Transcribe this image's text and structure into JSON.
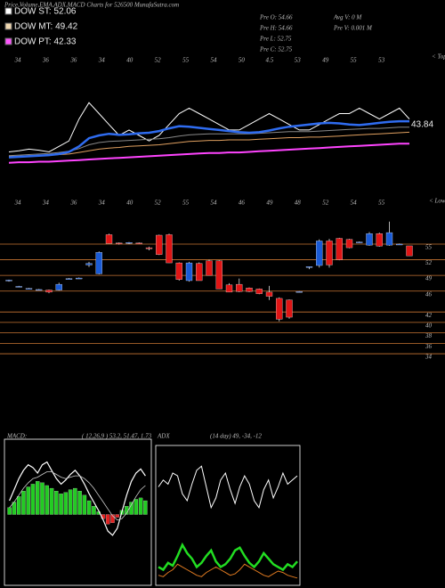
{
  "header": {
    "title": "Price,Volume,EMA,ADX,MACD Charts for 526500 MunafaSutra.com",
    "legend": [
      {
        "label": "DOW ST: 52.06",
        "color": "#ffffff"
      },
      {
        "label": "DOW MT: 49.42",
        "color": "#f0d8b0"
      },
      {
        "label": "DOW PT: 42.33",
        "color": "#ff55ff"
      }
    ],
    "info": [
      "Pre O: 54.66",
      "Pre H: 54.66",
      "Pre L: 52.75",
      "Pre C: 52.75",
      "Avg V: 0 M",
      "Pre V: 0.001 M"
    ]
  },
  "chart_data": [
    {
      "type": "line",
      "corner_label": "< Tops",
      "last_label": "43.84",
      "date_labels": [
        "34",
        "36",
        "36",
        "34",
        "40",
        "52",
        "55",
        "54",
        "50",
        "4.5",
        "53",
        "49",
        "55",
        "53"
      ],
      "ylim": [
        40,
        62
      ],
      "series": [
        {
          "color": "#ffffff",
          "width": 1,
          "values": [
            44,
            44.2,
            44.5,
            44.3,
            44,
            45,
            46,
            50,
            53,
            51,
            49,
            47,
            48,
            47,
            46,
            47,
            49,
            51,
            52,
            51,
            50,
            49,
            48,
            48,
            49,
            50,
            51,
            50,
            49,
            48,
            48,
            49,
            50,
            51,
            51,
            52,
            51,
            50,
            51,
            52,
            50
          ]
        },
        {
          "color": "#888888",
          "width": 1,
          "values": [
            43.3,
            43.4,
            43.5,
            43.6,
            43.7,
            43.9,
            44.1,
            44.6,
            45.3,
            45.7,
            45.9,
            46,
            46.1,
            46.2,
            46.3,
            46.4,
            46.6,
            46.9,
            47.1,
            47.2,
            47.3,
            47.3,
            47.3,
            47.3,
            47.3,
            47.4,
            47.5,
            47.6,
            47.7,
            47.7,
            47.7,
            47.8,
            47.9,
            48,
            48.1,
            48.2,
            48.3,
            48.3,
            48.4,
            48.5,
            48.5
          ]
        },
        {
          "color": "#e0a060",
          "width": 1,
          "values": [
            43.2,
            43.2,
            43.3,
            43.3,
            43.4,
            43.5,
            43.6,
            43.9,
            44.2,
            44.5,
            44.7,
            44.8,
            45,
            45.1,
            45.2,
            45.3,
            45.5,
            45.7,
            45.9,
            46,
            46.1,
            46.1,
            46.2,
            46.2,
            46.2,
            46.3,
            46.4,
            46.5,
            46.6,
            46.6,
            46.7,
            46.7,
            46.8,
            46.9,
            47,
            47.1,
            47.2,
            47.3,
            47.4,
            47.5,
            47.6
          ]
        },
        {
          "color": "#2f6cf0",
          "width": 2.5,
          "values": [
            43,
            43.1,
            43.2,
            43.3,
            43.4,
            43.6,
            44,
            45,
            46.5,
            47,
            47.3,
            47.1,
            47.2,
            47.4,
            47.5,
            47.8,
            48.3,
            48.7,
            48.6,
            48.4,
            48.2,
            48,
            47.8,
            47.6,
            47.5,
            47.6,
            47.9,
            48.3,
            48.6,
            48.8,
            49,
            49.2,
            49.3,
            49.2,
            49,
            48.9,
            49.1,
            49.3,
            49.5,
            49.6,
            49.6
          ]
        },
        {
          "color": "#ff44ff",
          "width": 2,
          "values": [
            42,
            42.1,
            42.1,
            42.2,
            42.2,
            42.3,
            42.4,
            42.5,
            42.6,
            42.7,
            42.8,
            42.9,
            43,
            43.1,
            43.2,
            43.3,
            43.4,
            43.5,
            43.6,
            43.7,
            43.8,
            43.8,
            43.9,
            43.9,
            44,
            44.1,
            44.2,
            44.3,
            44.4,
            44.5,
            44.6,
            44.7,
            44.8,
            44.9,
            45,
            45.1,
            45.2,
            45.3,
            45.4,
            45.5,
            45.5
          ]
        }
      ]
    },
    {
      "type": "candlestick",
      "corner_label": "< Lows",
      "up_color": "#1a5bd6",
      "down_color": "#e01515",
      "grid_color": "#c87533",
      "date_labels": [
        "34",
        "34",
        "36",
        "34",
        "40",
        "52",
        "55",
        "54",
        "46",
        "49",
        "48",
        "52",
        "54",
        "55"
      ],
      "ylim": [
        33.5,
        62.5
      ],
      "yticks": [
        55,
        52,
        49,
        46,
        42,
        40,
        38,
        36,
        34
      ],
      "open": [
        48,
        46.9,
        46.5,
        46.3,
        46.2,
        46.2,
        48.4,
        48.5,
        51,
        49.3,
        56.8,
        55.2,
        55.2,
        55.2,
        54.3,
        56.7,
        56.8,
        51.4,
        48,
        51.3,
        51.8,
        51.8,
        47.2,
        47.3,
        46.6,
        46.4,
        45.8,
        44.6,
        44.3,
        45.9,
        50.5,
        50.9,
        55.6,
        56.1,
        55.9,
        55.4,
        54.8,
        57,
        54.8,
        55,
        54.66
      ],
      "high": [
        48.2,
        47,
        46.6,
        46.4,
        46.3,
        47.6,
        48.5,
        48.6,
        51.6,
        53.6,
        57,
        55.3,
        55.4,
        55.3,
        54.5,
        56.8,
        57,
        51.5,
        51.6,
        51.5,
        52,
        51.9,
        47.5,
        48.4,
        46.7,
        46.5,
        47,
        44.8,
        44.4,
        46,
        50.7,
        55.9,
        56,
        56.2,
        56,
        55.5,
        57.3,
        57.2,
        59.3,
        55.1,
        54.66
      ],
      "low": [
        47.8,
        46.8,
        46.4,
        46.2,
        45.6,
        46.1,
        48.3,
        48.4,
        50.6,
        49.2,
        55.1,
        54.9,
        55,
        55,
        53.8,
        52.9,
        51.4,
        48,
        47.8,
        48,
        49,
        46.4,
        45.8,
        45.8,
        45.8,
        45.4,
        44.3,
        40.2,
        40.7,
        45.8,
        50.2,
        50.5,
        50.5,
        51.9,
        54.2,
        55.3,
        54.7,
        54.5,
        54.7,
        54.9,
        52.75
      ],
      "close": [
        48.1,
        46.9,
        46.5,
        46.3,
        45.8,
        47.3,
        48.4,
        48.5,
        51.3,
        53.4,
        55.1,
        55.1,
        55.3,
        55.1,
        54.1,
        53,
        51.4,
        48.2,
        51.4,
        48,
        49,
        46.4,
        45.8,
        45.9,
        45.9,
        45.5,
        45,
        40.6,
        41,
        45.9,
        50.7,
        55.6,
        51,
        52,
        54.3,
        55.4,
        57,
        54.6,
        57.2,
        55,
        52.75
      ]
    },
    {
      "type": "macd",
      "title": "MACD:",
      "params": "( 12,26,9 ) 53.2, 51.47, 1.73",
      "up_color": "#22cc22",
      "down_color": "#e02020",
      "ylim": [
        -5,
        5
      ],
      "hist": [
        0.5,
        0.9,
        1.3,
        1.7,
        2,
        2.2,
        2.4,
        2.3,
        2.1,
        1.9,
        1.7,
        1.5,
        1.6,
        1.8,
        1.9,
        1.7,
        1.4,
        1,
        0.6,
        0.2,
        -0.3,
        -0.7,
        -0.6,
        -0.2,
        0.3,
        0.6,
        0.9,
        1.1,
        1.2,
        1
      ],
      "series": [
        {
          "color": "#ffffff",
          "width": 1.2,
          "values": [
            1,
            1.8,
            2.6,
            3.2,
            3.6,
            3.4,
            3,
            3.6,
            3.8,
            3.2,
            2.6,
            2.2,
            2.5,
            2.9,
            3.2,
            2.8,
            2.2,
            1.5,
            0.9,
            0.3,
            -0.4,
            -1.2,
            -1.5,
            -1,
            0.2,
            1.4,
            2.4,
            3,
            3.3,
            2.8
          ]
        },
        {
          "color": "#cccccc",
          "width": 0.8,
          "values": [
            0.5,
            0.9,
            1.4,
            1.9,
            2.3,
            2.6,
            2.7,
            2.9,
            3.1,
            3.1,
            2.9,
            2.7,
            2.6,
            2.7,
            2.8,
            2.8,
            2.6,
            2.3,
            1.9,
            1.4,
            0.9,
            0.4,
            -0.1,
            -0.4,
            -0.3,
            0.1,
            0.7,
            1.3,
            1.8,
            2.1
          ]
        }
      ]
    },
    {
      "type": "adx",
      "title": "ADX",
      "params": "(14 day) 49, -34, -12",
      "ylim": [
        0,
        100
      ],
      "series": [
        {
          "color": "#ffffff",
          "width": 1,
          "values": [
            70,
            75,
            72,
            80,
            78,
            65,
            60,
            72,
            82,
            85,
            70,
            55,
            62,
            75,
            80,
            68,
            58,
            70,
            78,
            72,
            60,
            55,
            68,
            75,
            62,
            70,
            80,
            72,
            75,
            78
          ]
        },
        {
          "color": "#22dd22",
          "width": 2.5,
          "values": [
            12,
            10,
            15,
            13,
            20,
            28,
            22,
            18,
            12,
            15,
            20,
            24,
            16,
            12,
            14,
            18,
            24,
            26,
            20,
            15,
            12,
            16,
            22,
            18,
            14,
            12,
            10,
            14,
            12,
            16
          ]
        },
        {
          "color": "#e07a20",
          "width": 1,
          "values": [
            6,
            5,
            8,
            10,
            14,
            12,
            10,
            8,
            6,
            5,
            8,
            10,
            12,
            10,
            8,
            6,
            7,
            10,
            14,
            12,
            10,
            8,
            6,
            5,
            7,
            9,
            8,
            6,
            5,
            4
          ]
        }
      ]
    }
  ]
}
